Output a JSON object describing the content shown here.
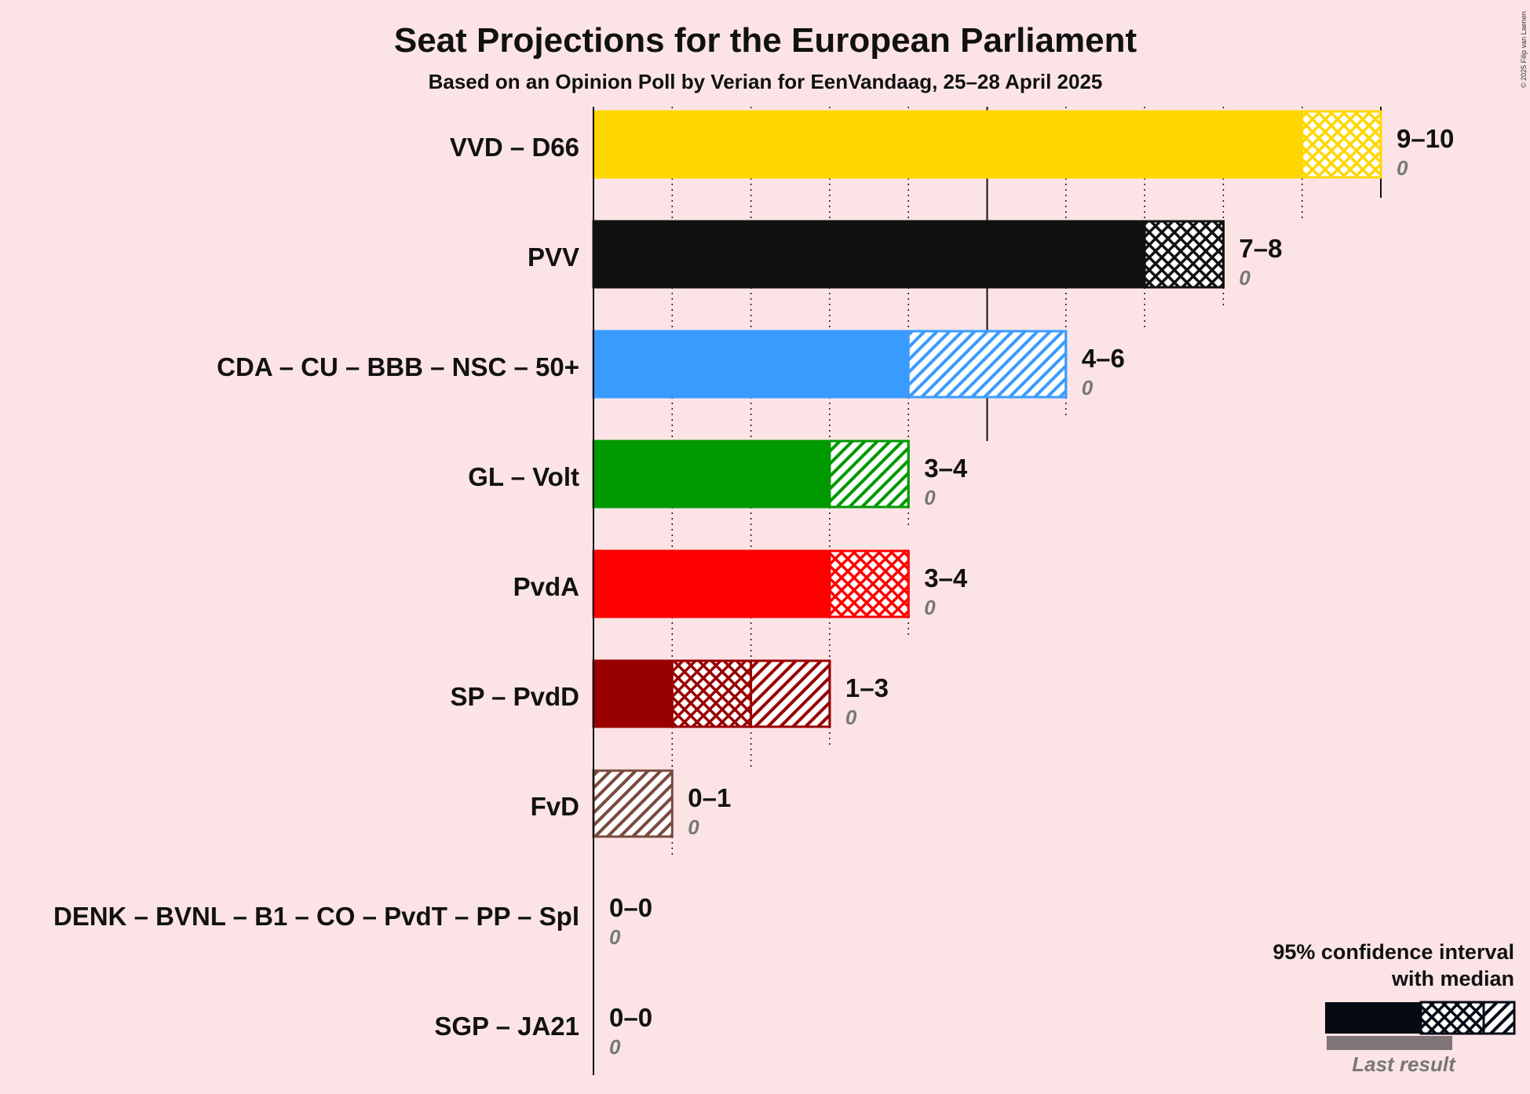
{
  "chart_data": {
    "type": "bar",
    "title": "Seat Projections for the European Parliament",
    "subtitle": "Based on an Opinion Poll by Verian for EenVandaag, 25–28 April 2025",
    "copyright": "© 2025 Filip van Laenen",
    "xlim": [
      0,
      10
    ],
    "grid": true,
    "legend_position": "bottom-right",
    "legend": {
      "line1": "95% confidence interval",
      "line2": "with median",
      "last_result": "Last result"
    },
    "parties": [
      {
        "name": "VVD – D66",
        "low": 9,
        "median": 9,
        "high": 10,
        "range_label": "9–10",
        "last": 0,
        "last_label": "0",
        "color": "#ffd700",
        "pattern_above": "cross"
      },
      {
        "name": "PVV",
        "low": 7,
        "median": 7,
        "high": 8,
        "range_label": "7–8",
        "last": 0,
        "last_label": "0",
        "color": "#111111",
        "pattern_above": "cross"
      },
      {
        "name": "CDA – CU – BBB – NSC – 50+",
        "low": 4,
        "median": 4,
        "high": 6,
        "range_label": "4–6",
        "last": 0,
        "last_label": "0",
        "color": "#3a9bff",
        "pattern_above": "diag"
      },
      {
        "name": "GL – Volt",
        "low": 3,
        "median": 3,
        "high": 4,
        "range_label": "3–4",
        "last": 0,
        "last_label": "0",
        "color": "#009900",
        "pattern_above": "diag"
      },
      {
        "name": "PvdA",
        "low": 3,
        "median": 3,
        "high": 4,
        "range_label": "3–4",
        "last": 0,
        "last_label": "0",
        "color": "#ff0000",
        "pattern_above": "cross"
      },
      {
        "name": "SP – PvdD",
        "low": 1,
        "median": 2,
        "high": 3,
        "range_label": "1–3",
        "last": 0,
        "last_label": "0",
        "color": "#990000",
        "pattern_above": "diag"
      },
      {
        "name": "FvD",
        "low": 0,
        "median": 0,
        "high": 1,
        "range_label": "0–1",
        "last": 0,
        "last_label": "0",
        "color": "#7a4a3e",
        "pattern_above": "diag"
      },
      {
        "name": "DENK – BVNL – B1 – CO – PvdT – PP – Spl",
        "low": 0,
        "median": 0,
        "high": 0,
        "range_label": "0–0",
        "last": 0,
        "last_label": "0",
        "color": "#888888",
        "pattern_above": "diag"
      },
      {
        "name": "SGP – JA21",
        "low": 0,
        "median": 0,
        "high": 0,
        "range_label": "0–0",
        "last": 0,
        "last_label": "0",
        "color": "#888888",
        "pattern_above": "diag"
      }
    ]
  }
}
